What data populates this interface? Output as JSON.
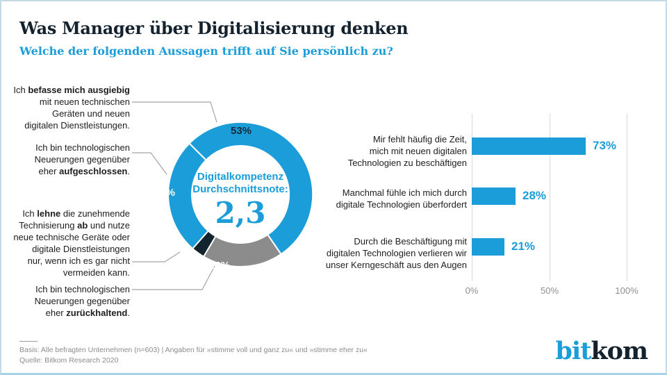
{
  "header": {
    "title": "Was Manager über Digitalisierung denken",
    "subtitle": "Welche der folgenden Aussagen trifft auf Sie persönlich zu?"
  },
  "colors": {
    "accent_blue": "#1b9dd9",
    "dark_navy": "#13242f",
    "gray": "#8c8c8c"
  },
  "statements": [
    {
      "lines": [
        [
          {
            "t": "Ich ",
            "b": false
          },
          {
            "t": "befasse mich ausgiebig",
            "b": true
          }
        ],
        [
          {
            "t": "mit neuen technischen",
            "b": false
          }
        ],
        [
          {
            "t": "Geräten und neuen",
            "b": false
          }
        ],
        [
          {
            "t": "digitalen Dienstleistungen.",
            "b": false
          }
        ]
      ]
    },
    {
      "lines": [
        [
          {
            "t": "Ich bin technologischen",
            "b": false
          }
        ],
        [
          {
            "t": "Neuerungen gegenüber",
            "b": false
          }
        ],
        [
          {
            "t": "eher ",
            "b": false
          },
          {
            "t": "aufgeschlossen",
            "b": true
          },
          {
            "t": ".",
            "b": false
          }
        ]
      ]
    },
    {
      "lines": [
        [
          {
            "t": "Ich ",
            "b": false
          },
          {
            "t": "lehne",
            "b": true
          },
          {
            "t": " die zunehmende",
            "b": false
          }
        ],
        [
          {
            "t": "Technisierung ",
            "b": false
          },
          {
            "t": "ab",
            "b": true
          },
          {
            "t": " und nutze",
            "b": false
          }
        ],
        [
          {
            "t": "neue technische Geräte oder",
            "b": false
          }
        ],
        [
          {
            "t": "digitale Dienstleistungen",
            "b": false
          }
        ],
        [
          {
            "t": "nur, wenn ich es gar nicht",
            "b": false
          }
        ],
        [
          {
            "t": "vermeiden kann.",
            "b": false
          }
        ]
      ]
    },
    {
      "lines": [
        [
          {
            "t": "Ich bin technologischen",
            "b": false
          }
        ],
        [
          {
            "t": "Neuerungen gegenüber",
            "b": false
          }
        ],
        [
          {
            "t": "eher ",
            "b": false
          },
          {
            "t": "zurückhaltend",
            "b": true
          },
          {
            "t": ".",
            "b": false
          }
        ]
      ]
    }
  ],
  "donut_center": {
    "line1": "Digitalkompetenz",
    "line2": "Durchschnittsnote:",
    "value": "2,3"
  },
  "chart_data": [
    {
      "type": "pie",
      "subtype": "donut",
      "title": "Digitalkompetenz Durchschnittsnote: 2,3",
      "start_angle_deg_from_top": -45,
      "slices": [
        {
          "label": "Ich befasse mich ausgiebig mit neuen technischen Geräten und neuen digitalen Dienstleistungen.",
          "value": 53,
          "color": "#1b9dd9",
          "value_label_color": "#16293a"
        },
        {
          "label": "Ich bin technologischen Neuerungen gegenüber eher zurückhaltend.",
          "value": 18,
          "color": "#8c8c8c",
          "value_label_color": "#ffffff"
        },
        {
          "label": "Ich lehne die zunehmende Technisierung ab und nutze neue technische Geräte oder digitale Dienstleistungen nur, wenn ich es gar nicht vermeiden kann.",
          "value": 3,
          "color": "#13242f",
          "value_label_color": "#ffffff"
        },
        {
          "label": "Ich bin technologischen Neuerungen gegenüber eher aufgeschlossen.",
          "value": 26,
          "color": "#1b9dd9",
          "value_label_color": "#ffffff"
        }
      ]
    },
    {
      "type": "bar",
      "orientation": "horizontal",
      "categories": [
        "Mir fehlt häufig die Zeit, mich mit neuen digitalen Technologien zu beschäftigen",
        "Manchmal fühle ich mich durch digitale Technologien überfordert",
        "Durch die Beschäftigung mit digitalen Technologien verlieren wir unser Kerngeschäft aus den Augen"
      ],
      "category_lines": [
        [
          "Mir fehlt häufig die Zeit,",
          "mich mit neuen digitalen",
          "Technologien zu beschäftigen"
        ],
        [
          "Manchmal fühle ich mich durch",
          "digitale Technologien überfordert"
        ],
        [
          "Durch die Beschäftigung mit",
          "digitalen Technologien verlieren wir",
          "unser Kerngeschäft aus den Augen"
        ]
      ],
      "values": [
        73,
        28,
        21
      ],
      "unit": "%",
      "xlim": [
        0,
        100
      ],
      "xticks": [
        "0%",
        "50%",
        "100%"
      ],
      "grid": true,
      "bar_color": "#1b9dd9"
    }
  ],
  "footer": {
    "basis": "Basis: Alle befragten Unternehmen (n=603) | Angaben für »stimme voll und ganz zu« und »stimme eher zu«",
    "quelle": "Quelle: Bitkom Research 2020"
  },
  "logo": {
    "part1": "bit",
    "part2": "kom"
  }
}
